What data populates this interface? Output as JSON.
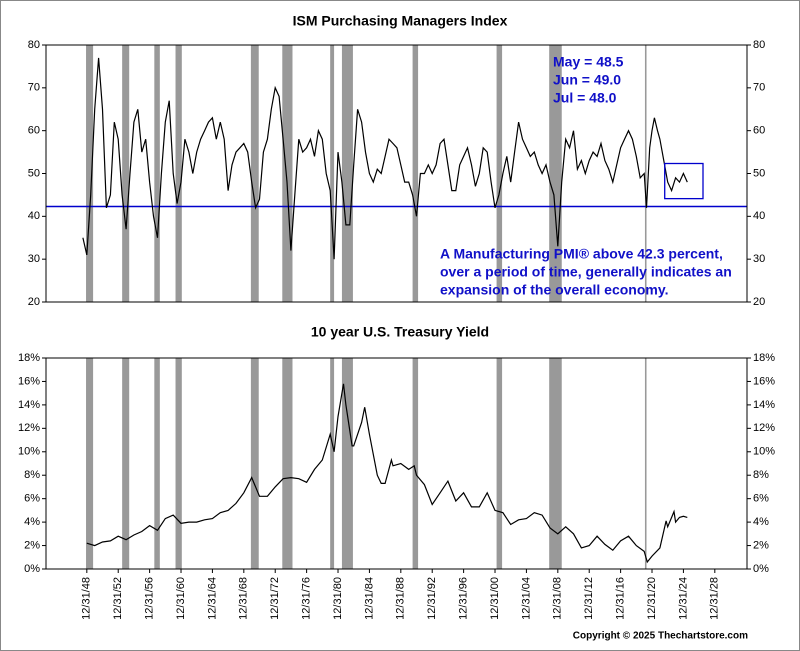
{
  "chart_data": [
    {
      "type": "line",
      "title": "ISM Purchasing Managers Index",
      "color": "#000000",
      "x": [
        1948.5,
        1949.0,
        1949.5,
        1950.0,
        1950.5,
        1951.0,
        1951.5,
        1952.0,
        1952.5,
        1953.0,
        1953.5,
        1954.0,
        1954.5,
        1955.0,
        1955.5,
        1956.0,
        1956.5,
        1957.0,
        1957.5,
        1958.0,
        1958.5,
        1959.0,
        1959.5,
        1960.0,
        1960.5,
        1961.0,
        1961.5,
        1962.0,
        1962.5,
        1963.0,
        1963.5,
        1964.0,
        1964.5,
        1965.0,
        1965.5,
        1966.0,
        1966.5,
        1967.0,
        1967.5,
        1968.0,
        1968.5,
        1969.0,
        1969.5,
        1970.0,
        1970.5,
        1971.0,
        1971.5,
        1972.0,
        1972.5,
        1973.0,
        1973.5,
        1974.0,
        1974.5,
        1975.0,
        1975.5,
        1976.0,
        1976.5,
        1977.0,
        1977.5,
        1978.0,
        1978.5,
        1979.0,
        1979.5,
        1980.0,
        1980.5,
        1981.0,
        1981.5,
        1982.0,
        1982.5,
        1983.0,
        1983.5,
        1984.0,
        1984.5,
        1985.0,
        1985.5,
        1986.0,
        1986.5,
        1987.0,
        1987.5,
        1988.0,
        1988.5,
        1989.0,
        1989.5,
        1990.0,
        1990.5,
        1991.0,
        1991.5,
        1992.0,
        1992.5,
        1993.0,
        1993.5,
        1994.0,
        1994.5,
        1995.0,
        1995.5,
        1996.0,
        1996.5,
        1997.0,
        1997.5,
        1998.0,
        1998.5,
        1999.0,
        1999.5,
        2000.0,
        2000.5,
        2001.0,
        2001.5,
        2002.0,
        2002.5,
        2003.0,
        2003.5,
        2004.0,
        2004.5,
        2005.0,
        2005.5,
        2006.0,
        2006.5,
        2007.0,
        2007.5,
        2008.0,
        2008.5,
        2009.0,
        2009.5,
        2010.0,
        2010.5,
        2011.0,
        2011.5,
        2012.0,
        2012.5,
        2013.0,
        2013.5,
        2014.0,
        2014.5,
        2015.0,
        2015.5,
        2016.0,
        2016.5,
        2017.0,
        2017.5,
        2018.0,
        2018.5,
        2019.0,
        2019.5,
        2020.0,
        2020.3,
        2020.7,
        2021.0,
        2021.3,
        2021.7,
        2022.0,
        2022.5,
        2023.0,
        2023.5,
        2024.0,
        2024.5,
        2025.0,
        2025.5
      ],
      "values": [
        35,
        31,
        45,
        65,
        77,
        65,
        42,
        45,
        62,
        58,
        45,
        37,
        50,
        62,
        65,
        55,
        58,
        48,
        40,
        35,
        50,
        62,
        67,
        50,
        43,
        48,
        58,
        55,
        50,
        55,
        58,
        60,
        62,
        63,
        58,
        62,
        58,
        46,
        52,
        55,
        56,
        57,
        55,
        48,
        42,
        44,
        55,
        58,
        65,
        70,
        68,
        58,
        48,
        32,
        45,
        58,
        55,
        56,
        58,
        54,
        60,
        58,
        50,
        46,
        30,
        55,
        48,
        38,
        38,
        52,
        65,
        62,
        55,
        50,
        48,
        51,
        50,
        54,
        58,
        57,
        56,
        52,
        48,
        48,
        45,
        40,
        50,
        50,
        52,
        50,
        52,
        57,
        58,
        52,
        46,
        46,
        52,
        54,
        56,
        52,
        47,
        50,
        56,
        55,
        48,
        42,
        45,
        50,
        54,
        48,
        55,
        62,
        58,
        56,
        54,
        55,
        52,
        50,
        52,
        48,
        45,
        33,
        48,
        58,
        56,
        60,
        51,
        53,
        50,
        53,
        55,
        54,
        57,
        53,
        51,
        48,
        52,
        56,
        58,
        60,
        58,
        54,
        49,
        50,
        42,
        56,
        60,
        63,
        60,
        58,
        53,
        48,
        46,
        49,
        48,
        50,
        48
      ],
      "xlim": [
        1943.8,
        2033.1
      ],
      "ylim": [
        20,
        80
      ],
      "yticks": [
        20,
        30,
        40,
        50,
        60,
        70,
        80
      ],
      "reference_line": {
        "value": 42.3,
        "color": "#0000cc"
      },
      "recent_labels": [
        "May = 48.5",
        "Jun = 49.0",
        "Jul = 48.0"
      ],
      "note": [
        "A Manufacturing PMI® above 42.3 percent,",
        "over a period of time, generally indicates an",
        "expansion of the overall economy."
      ]
    },
    {
      "type": "line",
      "title": "10 year U.S. Treasury Yield",
      "color": "#000000",
      "x": [
        1949,
        1950,
        1951,
        1952,
        1953,
        1954,
        1955,
        1956,
        1957,
        1958,
        1959,
        1960,
        1961,
        1962,
        1963,
        1964,
        1965,
        1966,
        1967,
        1968,
        1969,
        1970,
        1971,
        1972,
        1973,
        1974,
        1975,
        1976,
        1977,
        1978,
        1979,
        1980,
        1980.5,
        1981,
        1981.7,
        1982,
        1982.8,
        1983,
        1984,
        1984.4,
        1985,
        1986,
        1986.5,
        1987,
        1987.8,
        1988,
        1989,
        1990,
        1990.7,
        1991,
        1992,
        1993,
        1994,
        1995,
        1996,
        1997,
        1998,
        1999,
        2000,
        2001,
        2002,
        2003,
        2004,
        2005,
        2006,
        2007,
        2008,
        2009,
        2010,
        2011,
        2012,
        2013,
        2014,
        2015,
        2016,
        2017,
        2018,
        2019,
        2020,
        2020.4,
        2021,
        2022,
        2022.8,
        2023,
        2023.8,
        2024,
        2024.5,
        2025,
        2025.5
      ],
      "values": [
        2.2,
        2.0,
        2.3,
        2.4,
        2.8,
        2.5,
        2.9,
        3.2,
        3.7,
        3.3,
        4.3,
        4.6,
        3.9,
        4.0,
        4.0,
        4.2,
        4.3,
        4.8,
        5.0,
        5.6,
        6.5,
        7.8,
        6.2,
        6.2,
        7.0,
        7.7,
        7.8,
        7.7,
        7.4,
        8.5,
        9.3,
        11.5,
        10,
        13,
        15.8,
        14,
        10.5,
        10.5,
        12.5,
        13.8,
        11.5,
        8,
        7.3,
        7.3,
        9.3,
        8.8,
        9,
        8.5,
        8.8,
        8,
        7.2,
        5.5,
        6.5,
        7.5,
        5.8,
        6.5,
        5.3,
        5.3,
        6.5,
        5,
        4.8,
        3.8,
        4.2,
        4.3,
        4.8,
        4.6,
        3.5,
        3,
        3.6,
        3,
        1.8,
        2.0,
        2.8,
        2.1,
        1.6,
        2.4,
        2.8,
        2.0,
        1.5,
        0.6,
        1.1,
        1.8,
        4.1,
        3.6,
        4.9,
        4.0,
        4.4,
        4.5,
        4.4
      ],
      "xlim": [
        1943.8,
        2033.1
      ],
      "ylim": [
        0,
        18
      ],
      "yticks": [
        {
          "value": 0,
          "label": "0%"
        },
        {
          "value": 2,
          "label": "2%"
        },
        {
          "value": 4,
          "label": "4%"
        },
        {
          "value": 6,
          "label": "6%"
        },
        {
          "value": 8,
          "label": "8%"
        },
        {
          "value": 10,
          "label": "10%"
        },
        {
          "value": 12,
          "label": "12%"
        },
        {
          "value": 14,
          "label": "14%"
        },
        {
          "value": 16,
          "label": "16%"
        },
        {
          "value": 18,
          "label": "18%"
        }
      ],
      "xticks": [
        {
          "value": 1949,
          "label": "12/31/48"
        },
        {
          "value": 1953,
          "label": "12/31/52"
        },
        {
          "value": 1957,
          "label": "12/31/56"
        },
        {
          "value": 1961,
          "label": "12/31/60"
        },
        {
          "value": 1965,
          "label": "12/31/64"
        },
        {
          "value": 1969,
          "label": "12/31/68"
        },
        {
          "value": 1973,
          "label": "12/31/72"
        },
        {
          "value": 1977,
          "label": "12/31/76"
        },
        {
          "value": 1981,
          "label": "12/31/80"
        },
        {
          "value": 1985,
          "label": "12/31/84"
        },
        {
          "value": 1989,
          "label": "12/31/88"
        },
        {
          "value": 1993,
          "label": "12/31/92"
        },
        {
          "value": 1997,
          "label": "12/31/96"
        },
        {
          "value": 2001,
          "label": "12/31/00"
        },
        {
          "value": 2005,
          "label": "12/31/04"
        },
        {
          "value": 2009,
          "label": "12/31/08"
        },
        {
          "value": 2013,
          "label": "12/31/12"
        },
        {
          "value": 2017,
          "label": "12/31/16"
        },
        {
          "value": 2021,
          "label": "12/31/20"
        },
        {
          "value": 2025,
          "label": "12/31/24"
        },
        {
          "value": 2029,
          "label": "12/31/28"
        }
      ]
    }
  ],
  "recessions": [
    [
      1948.9,
      1949.8
    ],
    [
      1953.5,
      1954.4
    ],
    [
      1957.6,
      1958.3
    ],
    [
      1960.3,
      1961.1
    ],
    [
      1969.9,
      1970.9
    ],
    [
      1973.9,
      1975.2
    ],
    [
      1980.0,
      1980.5
    ],
    [
      1981.5,
      1982.9
    ],
    [
      1990.5,
      1991.2
    ],
    [
      2001.2,
      2001.9
    ],
    [
      2007.9,
      2009.5
    ],
    [
      2020.1,
      2020.3
    ]
  ],
  "recession_color": "#999999",
  "copyright": "Copyright © 2025 Thechartstore.com"
}
